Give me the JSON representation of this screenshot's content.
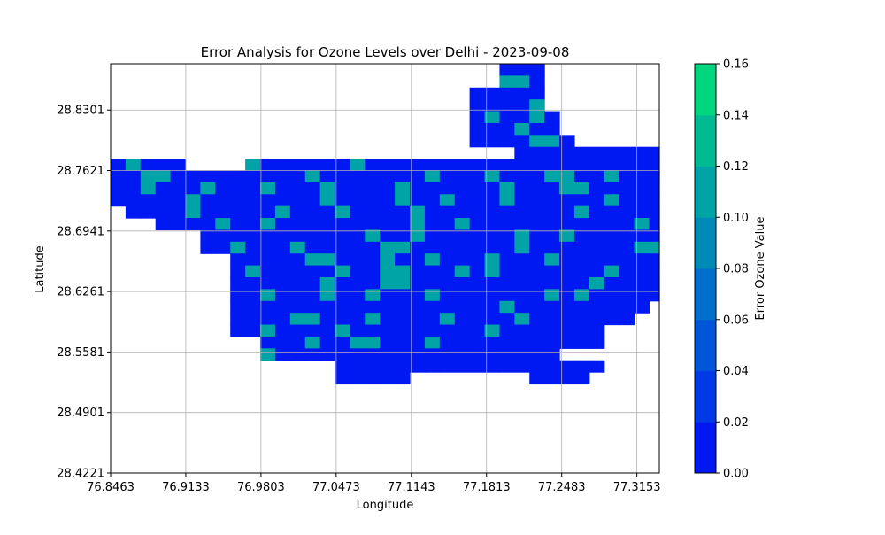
{
  "chart_data": {
    "type": "heatmap",
    "title": "Error Analysis for Ozone Levels over Delhi - 2023-09-08",
    "xlabel": "Longitude",
    "ylabel": "Latitude",
    "colorbar_label": "Error Ozone Value",
    "xlim": [
      76.8463,
      77.3353
    ],
    "ylim": [
      28.4221,
      28.8821
    ],
    "x_ticks": [
      "76.8463",
      "76.9133",
      "76.9803",
      "77.0473",
      "77.1143",
      "77.1813",
      "77.2483",
      "77.3153"
    ],
    "y_ticks": [
      "28.4221",
      "28.4901",
      "28.5581",
      "28.6261",
      "28.6941",
      "28.7621",
      "28.8301"
    ],
    "x_tick_values": [
      76.8463,
      76.9133,
      76.9803,
      77.0473,
      77.1143,
      77.1813,
      77.2483,
      77.3153
    ],
    "y_tick_values": [
      28.4221,
      28.4901,
      28.5581,
      28.6261,
      28.6941,
      28.7621,
      28.8301
    ],
    "colorbar": {
      "range": [
        0.0,
        0.16
      ],
      "ticks": [
        "0.00",
        "0.02",
        "0.04",
        "0.06",
        "0.08",
        "0.10",
        "0.12",
        "0.14",
        "0.16"
      ],
      "levels": [
        0.0,
        0.02,
        0.04,
        0.06,
        0.08,
        0.1,
        0.12,
        0.14,
        0.16
      ],
      "colors": [
        "#0019f2",
        "#0039e6",
        "#0055d9",
        "#0070cc",
        "#008ab8",
        "#00a3a6",
        "#00bb91",
        "#00d67d"
      ]
    },
    "grid": true,
    "grid_shape": {
      "rows": 27,
      "cols": 37
    },
    "lon0": 76.8463,
    "lat0": 28.4221,
    "cell_deg": 0.01333,
    "region_mask": [
      "..........................ooo........",
      "..........................ooo........",
      "........................ooooo........",
      "........................ooooo........",
      "........................oooooo.......",
      "........................oooooo.......",
      "........................ooooooo......",
      "...........................ooooooooooo",
      "ooooo....oooooooooooooooooooooooooooooo",
      "oooooooooooooooooooooooooooooooooooooo",
      "ooooooooooooooooooooooooooooooooooooooo",
      "oooooooooooooooooooooooooooooooooooooo",
      ".oooooooooooooooooooooooooooooooooooo",
      "...ooooooooooooooooooooooooooooooooooo",
      "......ooooooooooooooooooooooooooooooooo",
      "......oooooooooooooooooooooooooooooooo",
      "........oooooooooooooooooooooooooooooo",
      "........ooooooooooooooooooooooooooooooo",
      "........ooooooooooooooooooooooooooooooo",
      "........oooooooooooooooooooooooooooooo",
      "........oooooooooooooooooooooooooooo...",
      "........ooooooooooooooooooooooooooo....",
      "........ooooooooooooooooooooooooo......",
      "..........ooooooooooooooooooooooo......",
      "..........oooooooooooooooooooo.........",
      "...............oooooooooooooooooo......",
      "...............ooooo........oooo......."
    ],
    "values": [
      [
        0.0,
        0.0,
        0.0,
        0.0,
        0.0,
        0.0,
        0.0,
        0.0,
        0.0,
        0.0,
        0.0,
        0.0,
        0.0,
        0.0,
        0.0,
        0.0,
        0.0,
        0.0,
        0.0,
        0.0,
        0.0,
        0.0,
        0.0,
        0.0,
        0.0,
        0.0,
        0.0,
        0.0,
        0.0,
        0.0,
        0.0,
        0.0,
        0.0,
        0.0,
        0.0,
        0.0,
        0.0
      ],
      [
        0.0,
        0.0,
        0.0,
        0.0,
        0.0,
        0.0,
        0.0,
        0.0,
        0.0,
        0.0,
        0.0,
        0.0,
        0.0,
        0.0,
        0.0,
        0.0,
        0.0,
        0.0,
        0.0,
        0.0,
        0.0,
        0.0,
        0.0,
        0.0,
        0.0,
        0.0,
        0.12,
        0.12,
        0.0,
        0.0,
        0.0,
        0.0,
        0.0,
        0.0,
        0.0,
        0.0,
        0.0
      ],
      [
        0.0,
        0.0,
        0.0,
        0.0,
        0.0,
        0.0,
        0.0,
        0.0,
        0.0,
        0.0,
        0.0,
        0.0,
        0.0,
        0.0,
        0.0,
        0.0,
        0.0,
        0.0,
        0.0,
        0.0,
        0.0,
        0.0,
        0.0,
        0.0,
        0.0,
        0.0,
        0.0,
        0.0,
        0.0,
        0.12,
        0.0,
        0.0,
        0.0,
        0.0,
        0.0,
        0.0,
        0.0
      ],
      [
        0.0,
        0.0,
        0.0,
        0.0,
        0.0,
        0.0,
        0.0,
        0.0,
        0.0,
        0.0,
        0.0,
        0.0,
        0.0,
        0.0,
        0.0,
        0.0,
        0.0,
        0.0,
        0.0,
        0.0,
        0.0,
        0.0,
        0.0,
        0.0,
        0.0,
        0.0,
        0.0,
        0.0,
        0.12,
        0.0,
        0.0,
        0.0,
        0.0,
        0.0,
        0.0,
        0.0,
        0.0
      ],
      [
        0.0,
        0.0,
        0.0,
        0.0,
        0.0,
        0.0,
        0.0,
        0.0,
        0.0,
        0.0,
        0.0,
        0.0,
        0.0,
        0.0,
        0.0,
        0.0,
        0.0,
        0.0,
        0.0,
        0.0,
        0.0,
        0.0,
        0.0,
        0.0,
        0.0,
        0.12,
        0.0,
        0.0,
        0.12,
        0.0,
        0.0,
        0.0,
        0.0,
        0.0,
        0.0,
        0.0,
        0.0
      ],
      [
        0.0,
        0.0,
        0.0,
        0.0,
        0.0,
        0.0,
        0.0,
        0.0,
        0.0,
        0.0,
        0.0,
        0.0,
        0.0,
        0.0,
        0.0,
        0.0,
        0.0,
        0.0,
        0.0,
        0.0,
        0.0,
        0.0,
        0.0,
        0.0,
        0.0,
        0.0,
        0.0,
        0.12,
        0.0,
        0.0,
        0.0,
        0.0,
        0.0,
        0.0,
        0.0,
        0.0,
        0.0
      ],
      [
        0.0,
        0.0,
        0.0,
        0.0,
        0.0,
        0.0,
        0.0,
        0.0,
        0.0,
        0.0,
        0.0,
        0.0,
        0.0,
        0.0,
        0.0,
        0.0,
        0.0,
        0.0,
        0.0,
        0.0,
        0.0,
        0.0,
        0.0,
        0.0,
        0.0,
        0.0,
        0.0,
        0.0,
        0.12,
        0.12,
        0.0,
        0.0,
        0.0,
        0.0,
        0.0,
        0.0,
        0.0
      ],
      [
        0.0,
        0.0,
        0.0,
        0.0,
        0.0,
        0.0,
        0.0,
        0.0,
        0.0,
        0.0,
        0.0,
        0.0,
        0.0,
        0.0,
        0.0,
        0.0,
        0.0,
        0.0,
        0.0,
        0.0,
        0.0,
        0.0,
        0.0,
        0.0,
        0.0,
        0.0,
        0.0,
        0.0,
        0.0,
        0.0,
        0.0,
        0.0,
        0.0,
        0.0,
        0.0,
        0.0,
        0.0
      ],
      [
        0.0,
        0.12,
        0.0,
        0.0,
        0.0,
        0.0,
        0.0,
        0.0,
        0.0,
        0.12,
        0.0,
        0.0,
        0.0,
        0.0,
        0.0,
        0.0,
        0.12,
        0.0,
        0.0,
        0.0,
        0.0,
        0.0,
        0.0,
        0.0,
        0.0,
        0.0,
        0.0,
        0.0,
        0.0,
        0.0,
        0.0,
        0.0,
        0.0,
        0.0,
        0.0,
        0.0,
        0.0
      ],
      [
        0.0,
        0.0,
        0.12,
        0.12,
        0.0,
        0.0,
        0.0,
        0.0,
        0.0,
        0.0,
        0.0,
        0.0,
        0.0,
        0.12,
        0.0,
        0.0,
        0.0,
        0.0,
        0.0,
        0.0,
        0.0,
        0.12,
        0.0,
        0.0,
        0.0,
        0.12,
        0.0,
        0.0,
        0.0,
        0.12,
        0.12,
        0.0,
        0.0,
        0.12,
        0.0,
        0.0,
        0.0
      ],
      [
        0.0,
        0.0,
        0.12,
        0.0,
        0.0,
        0.0,
        0.12,
        0.0,
        0.0,
        0.0,
        0.12,
        0.0,
        0.0,
        0.0,
        0.12,
        0.0,
        0.0,
        0.0,
        0.0,
        0.12,
        0.0,
        0.0,
        0.0,
        0.0,
        0.0,
        0.0,
        0.12,
        0.0,
        0.0,
        0.0,
        0.12,
        0.12,
        0.0,
        0.0,
        0.0,
        0.0,
        0.0
      ],
      [
        0.0,
        0.0,
        0.0,
        0.0,
        0.0,
        0.12,
        0.0,
        0.0,
        0.0,
        0.0,
        0.0,
        0.0,
        0.0,
        0.0,
        0.12,
        0.0,
        0.0,
        0.0,
        0.0,
        0.12,
        0.0,
        0.0,
        0.12,
        0.0,
        0.0,
        0.0,
        0.12,
        0.0,
        0.0,
        0.0,
        0.0,
        0.0,
        0.0,
        0.12,
        0.0,
        0.0,
        0.0
      ],
      [
        0.0,
        0.0,
        0.0,
        0.0,
        0.0,
        0.12,
        0.0,
        0.0,
        0.0,
        0.0,
        0.0,
        0.12,
        0.0,
        0.0,
        0.0,
        0.12,
        0.0,
        0.0,
        0.0,
        0.0,
        0.12,
        0.0,
        0.0,
        0.0,
        0.0,
        0.0,
        0.0,
        0.0,
        0.0,
        0.0,
        0.0,
        0.12,
        0.0,
        0.0,
        0.0,
        0.0,
        0.0
      ],
      [
        0.0,
        0.0,
        0.0,
        0.0,
        0.0,
        0.0,
        0.0,
        0.12,
        0.0,
        0.0,
        0.12,
        0.0,
        0.0,
        0.0,
        0.0,
        0.0,
        0.0,
        0.0,
        0.0,
        0.0,
        0.12,
        0.0,
        0.0,
        0.12,
        0.0,
        0.0,
        0.0,
        0.0,
        0.0,
        0.0,
        0.0,
        0.0,
        0.0,
        0.0,
        0.0,
        0.12,
        0.0
      ],
      [
        0.0,
        0.0,
        0.0,
        0.0,
        0.0,
        0.0,
        0.0,
        0.0,
        0.0,
        0.0,
        0.0,
        0.0,
        0.0,
        0.0,
        0.0,
        0.0,
        0.0,
        0.12,
        0.0,
        0.0,
        0.12,
        0.0,
        0.0,
        0.0,
        0.0,
        0.0,
        0.0,
        0.12,
        0.0,
        0.0,
        0.12,
        0.0,
        0.0,
        0.0,
        0.0,
        0.0,
        0.0
      ],
      [
        0.0,
        0.0,
        0.0,
        0.0,
        0.0,
        0.0,
        0.0,
        0.0,
        0.12,
        0.0,
        0.0,
        0.0,
        0.12,
        0.0,
        0.0,
        0.0,
        0.0,
        0.0,
        0.12,
        0.12,
        0.0,
        0.0,
        0.0,
        0.0,
        0.0,
        0.0,
        0.0,
        0.12,
        0.0,
        0.0,
        0.0,
        0.0,
        0.0,
        0.0,
        0.0,
        0.12,
        0.12
      ],
      [
        0.0,
        0.0,
        0.0,
        0.0,
        0.0,
        0.0,
        0.0,
        0.0,
        0.0,
        0.0,
        0.0,
        0.0,
        0.0,
        0.12,
        0.12,
        0.0,
        0.0,
        0.0,
        0.12,
        0.0,
        0.0,
        0.12,
        0.0,
        0.0,
        0.0,
        0.12,
        0.0,
        0.0,
        0.0,
        0.12,
        0.0,
        0.0,
        0.0,
        0.0,
        0.0,
        0.0,
        0.0
      ],
      [
        0.0,
        0.0,
        0.0,
        0.0,
        0.0,
        0.0,
        0.0,
        0.0,
        0.0,
        0.12,
        0.0,
        0.0,
        0.0,
        0.0,
        0.0,
        0.12,
        0.0,
        0.0,
        0.12,
        0.12,
        0.0,
        0.0,
        0.0,
        0.12,
        0.0,
        0.12,
        0.0,
        0.0,
        0.0,
        0.0,
        0.0,
        0.0,
        0.0,
        0.12,
        0.0,
        0.0,
        0.0
      ],
      [
        0.0,
        0.0,
        0.0,
        0.0,
        0.0,
        0.0,
        0.0,
        0.0,
        0.0,
        0.0,
        0.0,
        0.0,
        0.0,
        0.0,
        0.12,
        0.0,
        0.0,
        0.0,
        0.12,
        0.12,
        0.0,
        0.0,
        0.0,
        0.0,
        0.0,
        0.0,
        0.0,
        0.0,
        0.0,
        0.0,
        0.0,
        0.0,
        0.12,
        0.0,
        0.0,
        0.0,
        0.0
      ],
      [
        0.0,
        0.0,
        0.0,
        0.0,
        0.0,
        0.0,
        0.0,
        0.0,
        0.0,
        0.0,
        0.12,
        0.0,
        0.0,
        0.0,
        0.12,
        0.0,
        0.0,
        0.12,
        0.0,
        0.0,
        0.0,
        0.12,
        0.0,
        0.0,
        0.0,
        0.0,
        0.0,
        0.0,
        0.0,
        0.12,
        0.0,
        0.12,
        0.0,
        0.0,
        0.0,
        0.0,
        0.0
      ],
      [
        0.0,
        0.0,
        0.0,
        0.0,
        0.0,
        0.0,
        0.0,
        0.0,
        0.0,
        0.0,
        0.0,
        0.0,
        0.0,
        0.0,
        0.0,
        0.0,
        0.0,
        0.0,
        0.0,
        0.0,
        0.0,
        0.0,
        0.0,
        0.0,
        0.0,
        0.0,
        0.12,
        0.0,
        0.0,
        0.0,
        0.0,
        0.0,
        0.0,
        0.0,
        0.0,
        0.0,
        0.0
      ],
      [
        0.0,
        0.0,
        0.0,
        0.0,
        0.0,
        0.0,
        0.0,
        0.0,
        0.0,
        0.0,
        0.0,
        0.0,
        0.12,
        0.12,
        0.0,
        0.0,
        0.0,
        0.12,
        0.0,
        0.0,
        0.0,
        0.0,
        0.12,
        0.0,
        0.0,
        0.0,
        0.0,
        0.12,
        0.0,
        0.0,
        0.0,
        0.0,
        0.0,
        0.0,
        0.0,
        0.0,
        0.0
      ],
      [
        0.0,
        0.0,
        0.0,
        0.0,
        0.0,
        0.0,
        0.0,
        0.0,
        0.0,
        0.0,
        0.12,
        0.0,
        0.0,
        0.0,
        0.0,
        0.12,
        0.0,
        0.0,
        0.0,
        0.0,
        0.0,
        0.0,
        0.0,
        0.0,
        0.0,
        0.12,
        0.0,
        0.0,
        0.0,
        0.0,
        0.0,
        0.0,
        0.0,
        0.0,
        0.0,
        0.0,
        0.0
      ],
      [
        0.0,
        0.0,
        0.0,
        0.0,
        0.0,
        0.0,
        0.0,
        0.0,
        0.0,
        0.0,
        0.0,
        0.0,
        0.0,
        0.12,
        0.0,
        0.0,
        0.12,
        0.12,
        0.0,
        0.0,
        0.0,
        0.12,
        0.0,
        0.0,
        0.0,
        0.0,
        0.0,
        0.0,
        0.0,
        0.0,
        0.0,
        0.0,
        0.0,
        0.0,
        0.0,
        0.0,
        0.0
      ],
      [
        0.0,
        0.0,
        0.0,
        0.0,
        0.0,
        0.0,
        0.0,
        0.0,
        0.0,
        0.0,
        0.12,
        0.0,
        0.0,
        0.0,
        0.0,
        0.0,
        0.0,
        0.0,
        0.0,
        0.0,
        0.0,
        0.0,
        0.0,
        0.0,
        0.0,
        0.0,
        0.0,
        0.0,
        0.0,
        0.0,
        0.0,
        0.0,
        0.0,
        0.0,
        0.0,
        0.0,
        0.0
      ],
      [
        0.0,
        0.0,
        0.0,
        0.0,
        0.0,
        0.0,
        0.0,
        0.0,
        0.0,
        0.0,
        0.0,
        0.0,
        0.0,
        0.0,
        0.0,
        0.0,
        0.0,
        0.0,
        0.0,
        0.0,
        0.0,
        0.0,
        0.0,
        0.0,
        0.0,
        0.0,
        0.0,
        0.0,
        0.0,
        0.0,
        0.0,
        0.0,
        0.0,
        0.0,
        0.0,
        0.0,
        0.0
      ],
      [
        0.0,
        0.0,
        0.0,
        0.0,
        0.0,
        0.0,
        0.0,
        0.0,
        0.0,
        0.0,
        0.0,
        0.0,
        0.0,
        0.0,
        0.0,
        0.0,
        0.0,
        0.0,
        0.0,
        0.0,
        0.0,
        0.0,
        0.0,
        0.0,
        0.0,
        0.0,
        0.0,
        0.0,
        0.0,
        0.0,
        0.0,
        0.0,
        0.0,
        0.0,
        0.0,
        0.0,
        0.0
      ]
    ]
  }
}
